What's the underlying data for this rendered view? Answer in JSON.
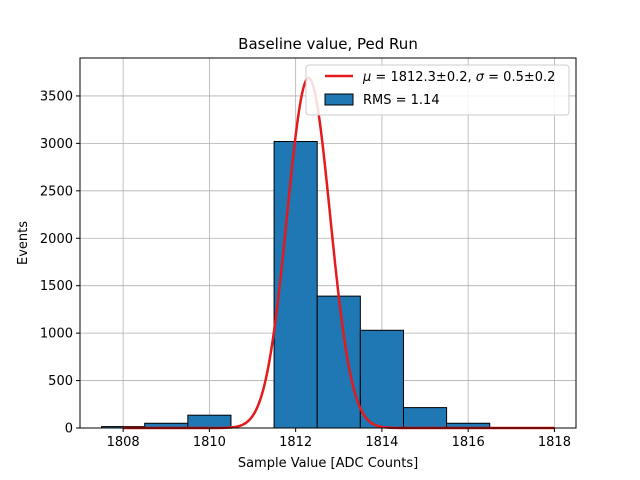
{
  "chart_data": {
    "type": "bar",
    "title": "Baseline value, Ped Run",
    "xlabel": "Sample Value [ADC Counts]",
    "ylabel": "Events",
    "xlim": [
      1807,
      1818.5
    ],
    "ylim": [
      0,
      3900
    ],
    "xticks": [
      1808,
      1810,
      1812,
      1814,
      1816,
      1818
    ],
    "yticks": [
      0,
      500,
      1000,
      1500,
      2000,
      2500,
      3000,
      3500
    ],
    "grid": true,
    "legend_position": "top-right",
    "histogram": {
      "name": "RMS = 1.14",
      "color": "#1f77b4",
      "edgecolor": "#000000",
      "bins": [
        {
          "x0": 1807.5,
          "x1": 1808.5,
          "value": 15
        },
        {
          "x0": 1808.5,
          "x1": 1809.5,
          "value": 50
        },
        {
          "x0": 1809.5,
          "x1": 1810.5,
          "value": 135
        },
        {
          "x0": 1810.5,
          "x1": 1811.5,
          "value": 0
        },
        {
          "x0": 1811.5,
          "x1": 1812.5,
          "value": 3020
        },
        {
          "x0": 1812.5,
          "x1": 1813.5,
          "value": 1390
        },
        {
          "x0": 1813.5,
          "x1": 1814.5,
          "value": 1030
        },
        {
          "x0": 1814.5,
          "x1": 1815.5,
          "value": 215
        },
        {
          "x0": 1815.5,
          "x1": 1816.5,
          "value": 50
        }
      ]
    },
    "fit": {
      "name_mu_symbol": "μ",
      "name_mu_text": " = 1812.3±0.2, ",
      "name_sigma_symbol": "σ",
      "name_sigma_text": " = 0.5±0.2",
      "color": "#e41a1c",
      "mu": 1812.3,
      "sigma": 0.5,
      "amplitude": 3690,
      "x_range": [
        1808,
        1818
      ]
    }
  }
}
